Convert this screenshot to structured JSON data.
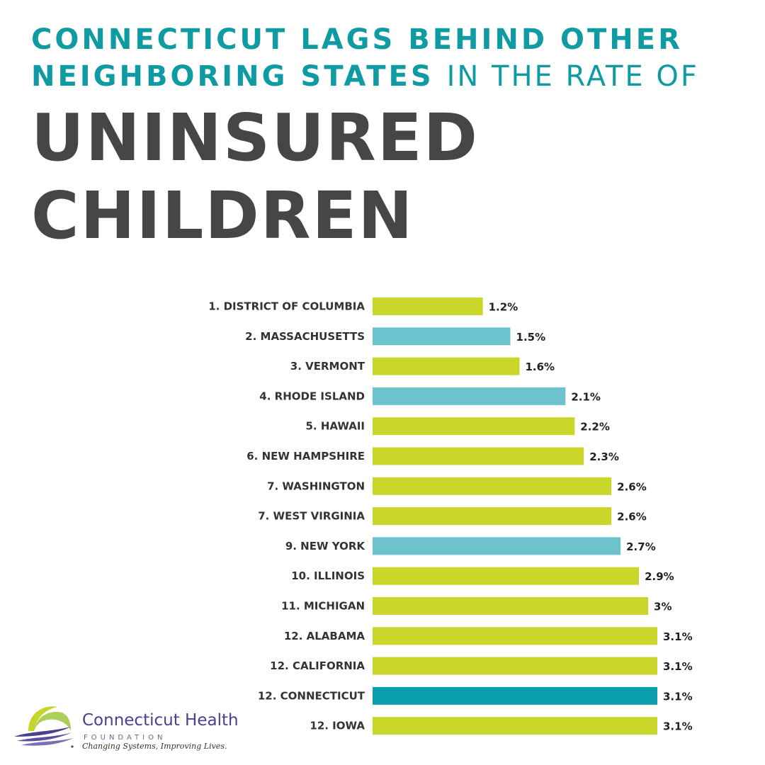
{
  "header": {
    "line1": "CONNECTICUT LAGS BEHIND OTHER",
    "line2_bold": "NEIGHBORING STATES",
    "line2_light": "IN THE RATE OF",
    "big1": "UNINSURED",
    "big2": "CHILDREN"
  },
  "colors": {
    "default_bar": "#cbd62b",
    "neighbor_bar": "#6cc3ce",
    "highlight_bar": "#0aa0ab",
    "title_teal": "#109ba3",
    "title_gray": "#464646"
  },
  "chart_data": {
    "type": "bar",
    "orientation": "horizontal",
    "categories": [
      "1. DISTRICT OF COLUMBIA",
      "2. MASSACHUSETTS",
      "3. VERMONT",
      "4. RHODE ISLAND",
      "5. HAWAII",
      "6. NEW HAMPSHIRE",
      "7. WASHINGTON",
      "7. WEST VIRGINIA",
      "9. NEW YORK",
      "10. ILLINOIS",
      "11. MICHIGAN",
      "12. ALABAMA",
      "12. CALIFORNIA",
      "12. CONNECTICUT",
      "12. IOWA"
    ],
    "values": [
      1.2,
      1.5,
      1.6,
      2.1,
      2.2,
      2.3,
      2.6,
      2.6,
      2.7,
      2.9,
      3.0,
      3.1,
      3.1,
      3.1,
      3.1
    ],
    "value_labels": [
      "1.2%",
      "1.5%",
      "1.6%",
      "2.1%",
      "2.2%",
      "2.3%",
      "2.6%",
      "2.6%",
      "2.7%",
      "2.9%",
      "3%",
      "3.1%",
      "3.1%",
      "3.1%",
      "3.1%"
    ],
    "bar_colors": [
      "#cbd62b",
      "#6cc3ce",
      "#cbd62b",
      "#6cc3ce",
      "#cbd62b",
      "#cbd62b",
      "#cbd62b",
      "#cbd62b",
      "#6cc3ce",
      "#cbd62b",
      "#cbd62b",
      "#cbd62b",
      "#cbd62b",
      "#0aa0ab",
      "#cbd62b"
    ],
    "unit": "%",
    "xlim": [
      0,
      3.1
    ],
    "grid": false,
    "legend": "none"
  },
  "logo": {
    "name": "Connecticut Health",
    "sub": "FOUNDATION",
    "tagline": "Changing Systems, Improving Lives."
  }
}
